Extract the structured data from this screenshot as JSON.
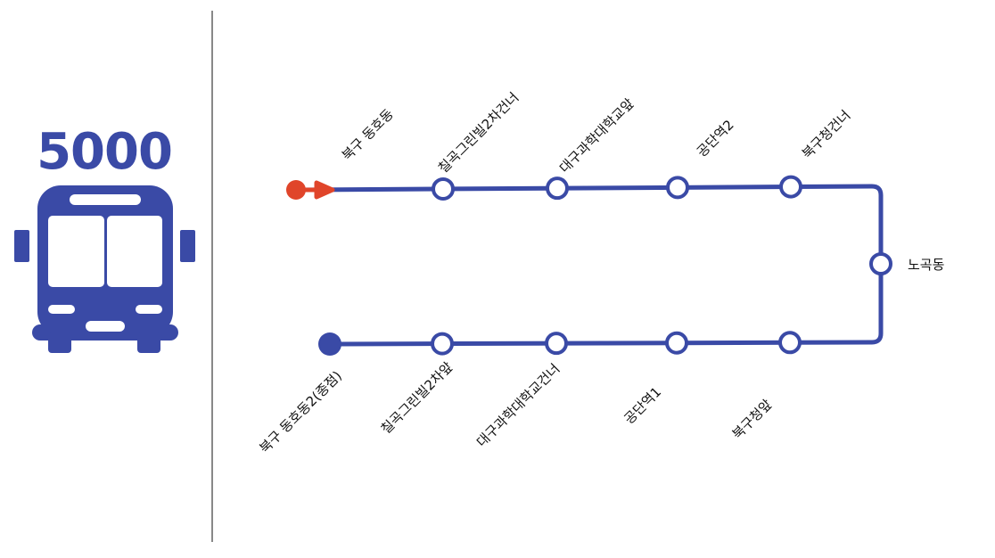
{
  "route": {
    "number": "5000",
    "line_color": "#3a4aa6",
    "start_color": "#e0452a",
    "end_color": "#3a4aa6"
  },
  "icons": {
    "bus": "bus-icon",
    "start": "start-arrow-icon",
    "end": "end-terminal-icon"
  },
  "stops": {
    "start": "북구 동호동",
    "upper": [
      "칠곡그린빌2차건너",
      "대구과학대학교앞",
      "공단역2",
      "북구청건너"
    ],
    "turn": "노곡동",
    "lower": [
      "북구청앞",
      "공단역1",
      "대구과학대학교건너",
      "칠곡그린빌2차앞"
    ],
    "end": "북구 동호동2(종점)"
  }
}
